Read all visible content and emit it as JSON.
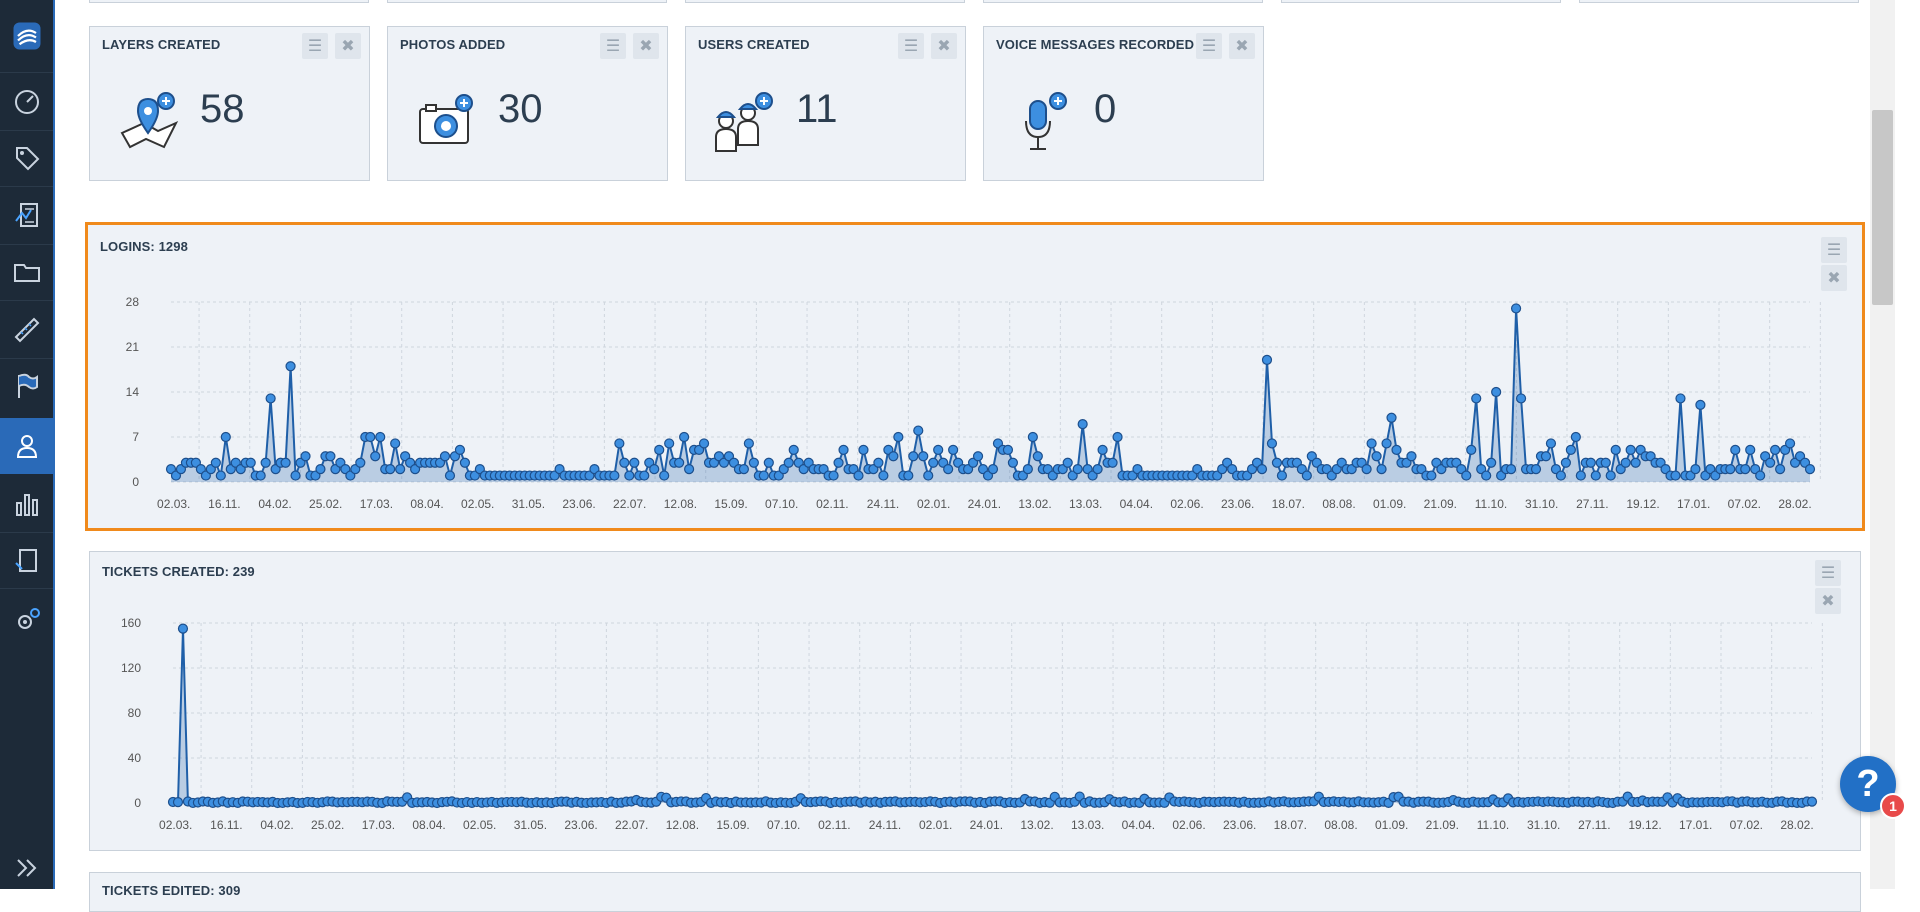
{
  "sidebar": {
    "items": [
      {
        "name": "logo-icon"
      },
      {
        "name": "dashboard-icon"
      },
      {
        "name": "tag-icon"
      },
      {
        "name": "report-icon"
      },
      {
        "name": "folder-icon"
      },
      {
        "name": "ruler-icon"
      },
      {
        "name": "flag-icon"
      },
      {
        "name": "user-icon"
      },
      {
        "name": "bar-chart-icon"
      },
      {
        "name": "clipboard-icon"
      },
      {
        "name": "settings-icon"
      }
    ],
    "expand_icon": "double-chevron-right-icon",
    "active_item": "user-icon"
  },
  "stats": [
    {
      "title": "LAYERS CREATED",
      "value": "58",
      "icon": "layer-add-icon"
    },
    {
      "title": "PHOTOS ADDED",
      "value": "30",
      "icon": "camera-add-icon"
    },
    {
      "title": "USERS CREATED",
      "value": "11",
      "icon": "users-add-icon"
    },
    {
      "title": "VOICE MESSAGES RECORDED",
      "value": "0",
      "icon": "microphone-add-icon"
    }
  ],
  "panel_controls": {
    "menu_icon": "menu-icon",
    "close_icon": "close-icon"
  },
  "colors": {
    "accent": "#2a6ab8",
    "series": "#1f5fa8",
    "highlight_border": "#f08a1c",
    "panel_bg": "#eef2f7"
  },
  "chart_data": [
    {
      "type": "area",
      "title": "LOGINS: 1298",
      "y_ticks": [
        "28",
        "21",
        "14",
        "7",
        "0"
      ],
      "ylim": [
        0,
        28
      ],
      "x_tick_labels": [
        "02.03.",
        "16.11.",
        "04.02.",
        "25.02.",
        "17.03.",
        "08.04.",
        "02.05.",
        "31.05.",
        "23.06.",
        "22.07.",
        "12.08.",
        "15.09.",
        "07.10.",
        "02.11.",
        "24.11.",
        "02.01.",
        "24.01.",
        "13.02.",
        "13.03.",
        "04.04.",
        "02.06.",
        "23.06.",
        "18.07.",
        "08.08.",
        "01.09.",
        "21.09.",
        "11.10.",
        "31.10.",
        "27.11.",
        "19.12.",
        "17.01.",
        "07.02.",
        "28.02."
      ],
      "peaks": [
        {
          "index": 20,
          "value": 13
        },
        {
          "index": 24,
          "value": 18
        },
        {
          "index": 42,
          "value": 7
        },
        {
          "index": 45,
          "value": 6
        },
        {
          "index": 150,
          "value": 8
        },
        {
          "index": 183,
          "value": 9
        },
        {
          "index": 220,
          "value": 19
        },
        {
          "index": 245,
          "value": 10
        },
        {
          "index": 262,
          "value": 13
        },
        {
          "index": 266,
          "value": 14
        },
        {
          "index": 270,
          "value": 27
        },
        {
          "index": 271,
          "value": 13
        },
        {
          "index": 303,
          "value": 13
        },
        {
          "index": 307,
          "value": 12
        }
      ],
      "points": 330
    },
    {
      "type": "area",
      "title": "TICKETS CREATED: 239",
      "y_ticks": [
        "160",
        "120",
        "80",
        "40",
        "0"
      ],
      "ylim": [
        0,
        160
      ],
      "x_tick_labels": [
        "02.03.",
        "16.11.",
        "04.02.",
        "25.02.",
        "17.03.",
        "08.04.",
        "02.05.",
        "31.05.",
        "23.06.",
        "22.07.",
        "12.08.",
        "15.09.",
        "07.10.",
        "02.11.",
        "24.11.",
        "02.01.",
        "24.01.",
        "13.02.",
        "13.03.",
        "04.04.",
        "02.06.",
        "23.06.",
        "18.07.",
        "08.08.",
        "01.09.",
        "21.09.",
        "11.10.",
        "31.10.",
        "27.11.",
        "19.12.",
        "17.01.",
        "07.02.",
        "28.02."
      ],
      "peaks": [
        {
          "index": 2,
          "value": 155
        }
      ],
      "points": 330
    }
  ],
  "next_panel_title": "TICKETS EDITED: 309",
  "help": {
    "icon": "help-icon",
    "badge": "1"
  }
}
